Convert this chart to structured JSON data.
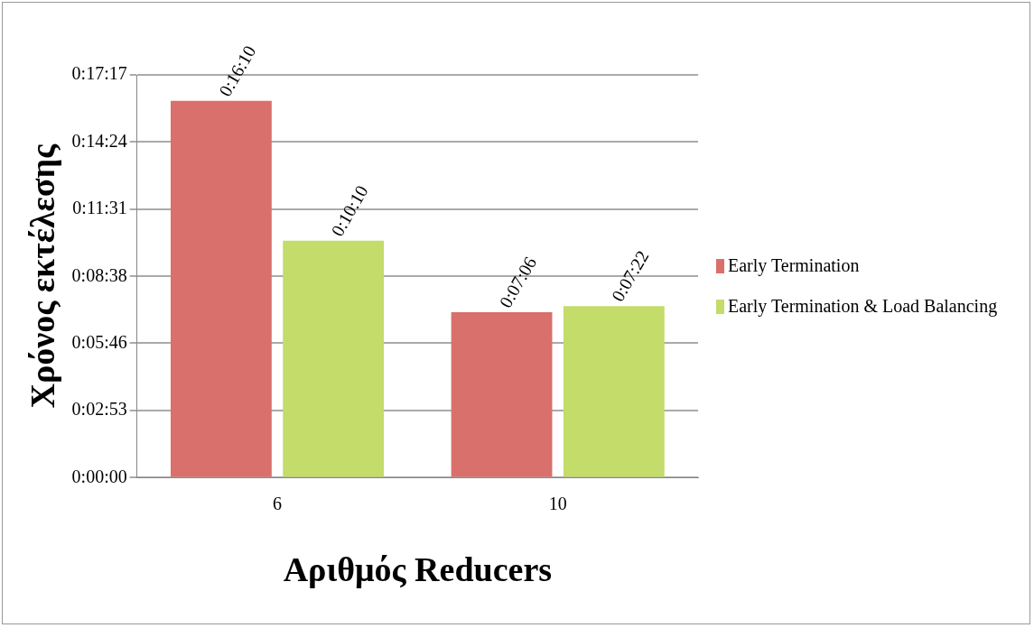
{
  "chart_data": {
    "type": "bar",
    "xlabel": "Αριθμός Reducers",
    "ylabel": "Χρόνος εκτέλεσης",
    "categories": [
      "6",
      "10"
    ],
    "series": [
      {
        "name": "Early Termination",
        "color": "#d9706b",
        "values": [
          970,
          426
        ],
        "value_labels": [
          "0:16:10",
          "0:07:06"
        ]
      },
      {
        "name": "Early Termination & Load Balancing",
        "color": "#c3dc6a",
        "values": [
          610,
          442
        ],
        "value_labels": [
          "0:10:10",
          "0:07:22"
        ]
      }
    ],
    "ylim": [
      0,
      1037
    ],
    "yticks": [
      {
        "value": 0,
        "label": "0:00:00"
      },
      {
        "value": 173,
        "label": "0:02:53"
      },
      {
        "value": 346,
        "label": "0:05:46"
      },
      {
        "value": 518,
        "label": "0:08:38"
      },
      {
        "value": 691,
        "label": "0:11:31"
      },
      {
        "value": 864,
        "label": "0:14:24"
      },
      {
        "value": 1037,
        "label": "0:17:17"
      }
    ],
    "grid": "y",
    "legend": "right"
  }
}
